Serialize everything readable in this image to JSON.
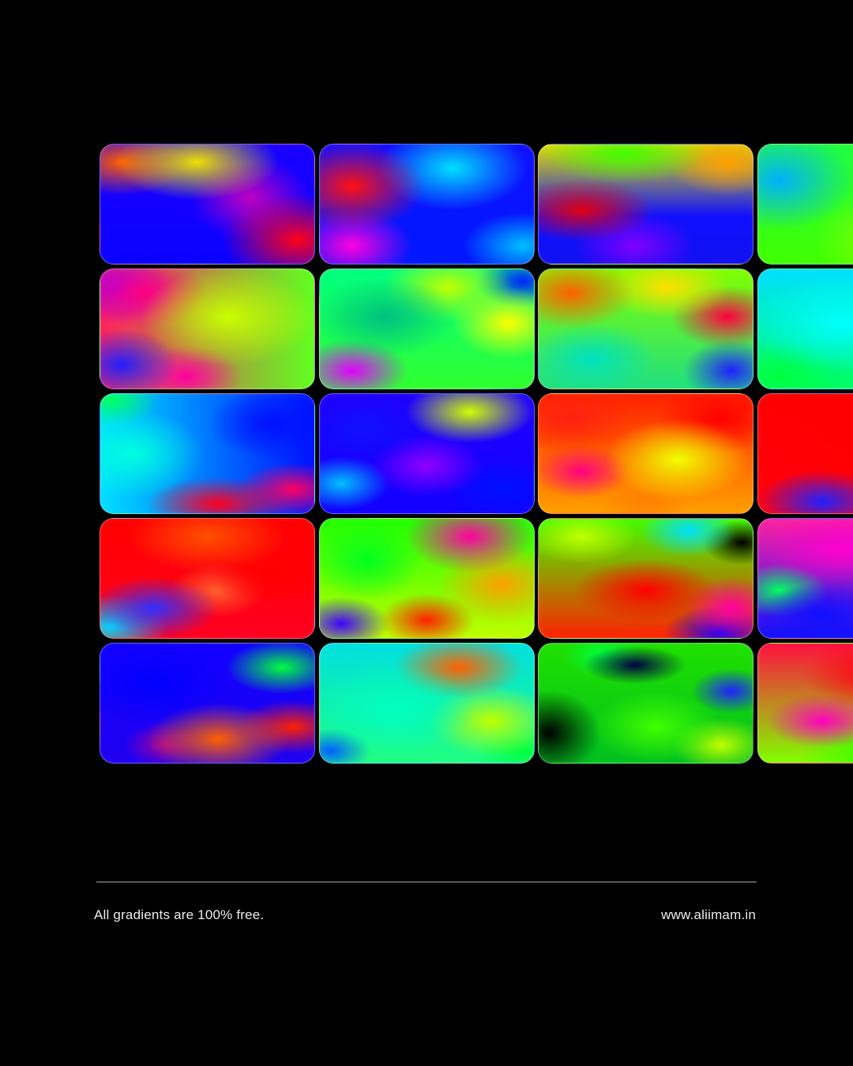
{
  "footer": {
    "left_text": "All gradients are 100% free.",
    "right_text": "www.aliimam.in"
  },
  "gradients": [
    [
      "radial-gradient(ellipse 55% 45% at 45% 15%, #f0e000 0%, rgba(240,224,0,0) 70%)",
      "radial-gradient(ellipse 45% 40% at 10% 15%, #ff5a00 0%, rgba(255,90,0,0) 70%)",
      "radial-gradient(ellipse 50% 55% at 92% 80%, #ff0018 0%, rgba(255,0,24,0) 70%)",
      "radial-gradient(ellipse 40% 50% at 70% 45%, #c000c0 0%, rgba(192,0,192,0) 70%)",
      "linear-gradient(180deg, #1a00ff 0%, #0a00ff 100%)"
    ],
    [
      "radial-gradient(ellipse 45% 50% at 15% 35%, #ff1010 0%, rgba(255,16,16,0) 75%)",
      "radial-gradient(ellipse 40% 45% at 15% 85%, #ff00e0 0%, rgba(255,0,224,0) 70%)",
      "radial-gradient(ellipse 50% 50% at 62% 20%, #00e0ff 0%, rgba(0,224,255,0) 70%)",
      "radial-gradient(ellipse 40% 40% at 95% 85%, #00c0ff 0%, rgba(0,192,255,0) 70%)",
      "linear-gradient(180deg, #1010ff 0%, #0018ff 100%)"
    ],
    [
      "radial-gradient(ellipse 55% 35% at 40% 8%, #40ff00 0%, rgba(64,255,0,0) 70%)",
      "radial-gradient(ellipse 40% 40% at 88% 15%, #ffa000 0%, rgba(255,160,0,0) 70%)",
      "radial-gradient(ellipse 45% 35% at 20% 55%, #e00010 0%, rgba(224,0,16,0) 75%)",
      "radial-gradient(ellipse 40% 40% at 45% 85%, #8000ff 0%, rgba(128,0,255,0) 70%)",
      "linear-gradient(180deg, #e0e000 0%, #1010ff 60%, #1010f0 100%)"
    ],
    [
      "radial-gradient(ellipse 60% 60% at 70% 80%, #a0ff00 0%, rgba(160,255,0,0) 75%)",
      "radial-gradient(ellipse 50% 60% at 10% 30%, #00b0ff 0%, rgba(0,176,255,0) 70%)",
      "linear-gradient(180deg, #20ff40 0%, #40ff00 100%)"
    ],
    [
      "radial-gradient(ellipse 55% 55% at 60% 40%, #c8ff00 0%, rgba(200,255,0,0) 75%)",
      "radial-gradient(ellipse 40% 40% at 20% 20%, #ff0080 0%, rgba(255,0,128,0) 75%)",
      "radial-gradient(ellipse 35% 40% at 8% 15%, #9000ff 0%, rgba(144,0,255,0) 75%)",
      "radial-gradient(ellipse 35% 40% at 10% 80%, #2020ff 0%, rgba(32,32,255,0) 75%)",
      "radial-gradient(ellipse 35% 35% at 40% 90%, #ff00a0 0%, rgba(255,0,160,0) 75%)",
      "linear-gradient(90deg, #ff2060 0%, #60ff20 100%)"
    ],
    [
      "radial-gradient(ellipse 45% 45% at 30% 40%, #00c080 0%, rgba(0,192,128,0) 75%)",
      "radial-gradient(ellipse 40% 40% at 60% 15%, #c0ff00 0%, rgba(192,255,0,0) 75%)",
      "radial-gradient(ellipse 35% 35% at 15% 85%, #e000ff 0%, rgba(224,0,255,0) 75%)",
      "radial-gradient(ellipse 35% 40% at 88% 45%, #ffff00 0%, rgba(255,255,0,0) 75%)",
      "radial-gradient(ellipse 30% 30% at 95% 10%, #0020ff 0%, rgba(0,32,255,0) 75%)",
      "linear-gradient(180deg, #00ff80 0%, #30ff30 100%)"
    ],
    [
      "radial-gradient(ellipse 40% 40% at 15% 20%, #ff6000 0%, rgba(255,96,0,0) 75%)",
      "radial-gradient(ellipse 40% 35% at 60% 15%, #ffe000 0%, rgba(255,224,0,0) 75%)",
      "radial-gradient(ellipse 35% 35% at 88% 40%, #ff0040 0%, rgba(255,0,64,0) 75%)",
      "radial-gradient(ellipse 40% 40% at 25% 75%, #00e0c0 0%, rgba(0,224,192,0) 75%)",
      "radial-gradient(ellipse 30% 35% at 90% 85%, #2020ff 0%, rgba(32,32,255,0) 75%)",
      "linear-gradient(180deg, #80ff00 0%, #20e080 100%)"
    ],
    [
      "radial-gradient(ellipse 60% 55% at 40% 45%, #00ffff 0%, rgba(0,255,255,0) 75%)",
      "radial-gradient(ellipse 40% 40% at 10% 90%, #00ff40 0%, rgba(0,255,64,0) 75%)",
      "linear-gradient(180deg, #00e0ff 0%, #00ff60 100%)"
    ],
    [
      "radial-gradient(ellipse 45% 50% at 15% 50%, #00ffe0 0%, rgba(0,255,224,0) 75%)",
      "radial-gradient(ellipse 30% 30% at 5% 5%, #00ff60 0%, rgba(0,255,96,0) 75%)",
      "radial-gradient(ellipse 40% 40% at 80% 25%, #0010ff 0%, rgba(0,16,255,0) 75%)",
      "radial-gradient(ellipse 45% 30% at 55% 92%, #ff0020 0%, rgba(255,0,32,0) 75%)",
      "radial-gradient(ellipse 35% 30% at 90% 80%, #ff0060 0%, rgba(255,0,96,0) 75%)",
      "linear-gradient(90deg, #00e0ff 0%, #0010ff 100%)"
    ],
    [
      "radial-gradient(ellipse 40% 40% at 20% 30%, #1010ff 0%, rgba(16,16,255,0) 75%)",
      "radial-gradient(ellipse 40% 35% at 70% 15%, #d0ff00 0%, rgba(208,255,0,0) 75%)",
      "radial-gradient(ellipse 35% 35% at 50% 60%, #9000ff 0%, rgba(144,0,255,0) 75%)",
      "radial-gradient(ellipse 30% 30% at 10% 75%, #00c0ff 0%, rgba(0,192,255,0) 75%)",
      "radial-gradient(ellipse 35% 35% at 85% 80%, #0010ff 0%, rgba(0,16,255,0) 75%)",
      "linear-gradient(180deg, #2000ff 0%, #1000ff 100%)"
    ],
    [
      "radial-gradient(ellipse 45% 45% at 65% 55%, #f0ff00 0%, rgba(240,255,0,0) 75%)",
      "radial-gradient(ellipse 40% 40% at 15% 20%, #ff2010 0%, rgba(255,32,16,0) 75%)",
      "radial-gradient(ellipse 30% 30% at 20% 65%, #ff0080 0%, rgba(255,0,128,0) 75%)",
      "radial-gradient(ellipse 40% 40% at 85% 20%, #ff0000 0%, rgba(255,0,0,0) 75%)",
      "radial-gradient(ellipse 30% 30% at 50% 90%, #ff8000 0%, rgba(255,128,0,0) 75%)",
      "linear-gradient(180deg, #ff2000 0%, #ffa000 100%)"
    ],
    [
      "radial-gradient(ellipse 60% 55% at 50% 40%, #ff0000 0%, rgba(255,0,0,0) 75%)",
      "radial-gradient(ellipse 40% 35% at 30% 90%, #2020ff 0%, rgba(32,32,255,0) 75%)",
      "linear-gradient(180deg, #ff0000 0%, #ff0010 100%)"
    ],
    [
      "radial-gradient(ellipse 50% 40% at 50% 15%, #ff5000 0%, rgba(255,80,0,0) 75%)",
      "radial-gradient(ellipse 40% 35% at 25% 75%, #3030ff 0%, rgba(48,48,255,0) 75%)",
      "radial-gradient(ellipse 35% 35% at 5% 90%, #00e0ff 0%, rgba(0,224,255,0) 75%)",
      "radial-gradient(ellipse 40% 40% at 80% 45%, #ff0000 0%, rgba(255,0,0,0) 75%)",
      "radial-gradient(ellipse 30% 30% at 55% 60%, #ff6030 0%, rgba(255,96,48,0) 75%)",
      "linear-gradient(180deg, #ff0000 0%, #ff0020 100%)"
    ],
    [
      "radial-gradient(ellipse 35% 45% at 22% 35%, #00ff20 0%, rgba(0,255,32,0) 75%)",
      "radial-gradient(ellipse 40% 40% at 70% 15%, #ff00a0 0%, rgba(255,0,160,0) 75%)",
      "radial-gradient(ellipse 40% 45% at 85% 55%, #ffa000 0%, rgba(255,160,0,0) 75%)",
      "radial-gradient(ellipse 30% 30% at 50% 85%, #ff2000 0%, rgba(255,32,0,0) 75%)",
      "radial-gradient(ellipse 30% 30% at 10% 88%, #4000ff 0%, rgba(64,0,255,0) 75%)",
      "linear-gradient(180deg, #20ff00 0%, #c0ff00 100%)"
    ],
    [
      "radial-gradient(ellipse 45% 35% at 50% 60%, #ff0000 0%, rgba(255,0,0,0) 75%)",
      "radial-gradient(ellipse 35% 30% at 20% 15%, #c0ff00 0%, rgba(192,255,0,0) 75%)",
      "radial-gradient(ellipse 30% 30% at 70% 10%, #00e0ff 0%, rgba(0,224,255,0) 75%)",
      "radial-gradient(ellipse 25% 25% at 95% 20%, #000000 0%, rgba(0,0,0,0) 75%)",
      "radial-gradient(ellipse 30% 35% at 90% 75%, #ff00a0 0%, rgba(255,0,160,0) 75%)",
      "radial-gradient(ellipse 35% 30% at 85% 95%, #1000ff 0%, rgba(16,0,255,0) 75%)",
      "linear-gradient(180deg, #40ff00 0%, #ff2000 100%)"
    ],
    [
      "radial-gradient(ellipse 50% 40% at 40% 25%, #ff00d0 0%, rgba(255,0,208,0) 75%)",
      "radial-gradient(ellipse 40% 35% at 30% 80%, #1010ff 0%, rgba(16,16,255,0) 75%)",
      "radial-gradient(ellipse 30% 30% at 10% 60%, #00ff60 0%, rgba(0,255,96,0) 75%)",
      "linear-gradient(180deg, #ff20a0 0%, #1010ff 100%)"
    ],
    [
      "radial-gradient(ellipse 45% 45% at 25% 35%, #0000ff 0%, rgba(0,0,255,0) 75%)",
      "radial-gradient(ellipse 35% 30% at 85% 20%, #00ff40 0%, rgba(0,255,64,0) 75%)",
      "radial-gradient(ellipse 45% 40% at 55% 80%, #ff6000 0%, rgba(255,96,0,0) 75%)",
      "radial-gradient(ellipse 35% 30% at 90% 70%, #ff2000 0%, rgba(255,32,0,0) 75%)",
      "radial-gradient(ellipse 25% 25% at 30% 85%, #a000a0 0%, rgba(160,0,160,0) 75%)",
      "linear-gradient(180deg, #1000ff 0%, #2000f0 100%)"
    ],
    [
      "radial-gradient(ellipse 50% 50% at 35% 55%, #00ffc0 0%, rgba(0,255,192,0) 75%)",
      "radial-gradient(ellipse 40% 35% at 65% 20%, #ff6000 0%, rgba(255,96,0,0) 75%)",
      "radial-gradient(ellipse 40% 40% at 80% 65%, #c0ff00 0%, rgba(192,255,0,0) 75%)",
      "radial-gradient(ellipse 30% 30% at 95% 90%, #00ff40 0%, rgba(0,255,64,0) 75%)",
      "radial-gradient(ellipse 25% 25% at 5% 90%, #0060ff 0%, rgba(0,96,255,0) 75%)",
      "linear-gradient(180deg, #00e0e0 0%, #20ff80 100%)"
    ],
    [
      "radial-gradient(ellipse 30% 45% at 5% 75%, #000000 0%, rgba(0,0,0,0) 80%)",
      "radial-gradient(ellipse 30% 20% at 45% 18%, #000040 0%, rgba(0,0,64,0) 80%)",
      "radial-gradient(ellipse 40% 40% at 55% 70%, #40ff00 0%, rgba(64,255,0,0) 75%)",
      "radial-gradient(ellipse 30% 30% at 85% 85%, #c0ff00 0%, rgba(192,255,0,0) 75%)",
      "radial-gradient(ellipse 25% 25% at 30% 10%, #00ff40 0%, rgba(0,255,64,0) 75%)",
      "radial-gradient(ellipse 25% 25% at 90% 40%, #2020ff 0%, rgba(32,32,255,0) 75%)",
      "linear-gradient(180deg, #20e000 0%, #00c020 100%)"
    ],
    [
      "radial-gradient(ellipse 45% 40% at 55% 25%, #ff0010 0%, rgba(255,0,16,0) 75%)",
      "radial-gradient(ellipse 35% 30% at 30% 65%, #ff00c0 0%, rgba(255,0,192,0) 75%)",
      "radial-gradient(ellipse 40% 35% at 50% 92%, #40ff00 0%, rgba(64,255,0,0) 75%)",
      "linear-gradient(180deg, #ff1040 0%, #80ff00 100%)"
    ]
  ]
}
